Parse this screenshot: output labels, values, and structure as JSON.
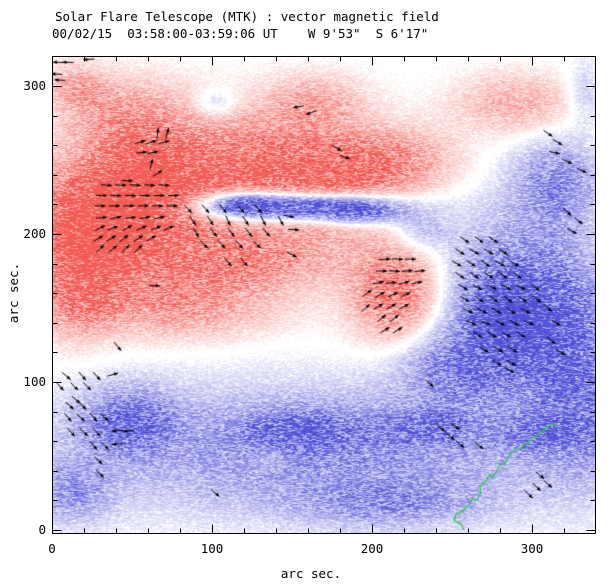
{
  "chart_data": {
    "type": "heatmap",
    "title": "Solar Flare Telescope (MTK) : vector magnetic field",
    "subtitle": "00/02/15  03:58:00-03:59:06 UT    W 9'53\"  S 6'17\"",
    "xlabel": "arc sec.",
    "ylabel": "arc sec.",
    "xlim": [
      0,
      339
    ],
    "ylim": [
      0,
      321
    ],
    "x_major_ticks": [
      0,
      100,
      200,
      300
    ],
    "y_major_ticks": [
      0,
      100,
      200,
      300
    ],
    "x_minor_ticks": [
      20,
      40,
      60,
      80,
      120,
      140,
      160,
      180,
      220,
      240,
      260,
      280,
      320
    ],
    "y_minor_ticks": [
      20,
      40,
      60,
      80,
      120,
      140,
      160,
      180,
      220,
      240,
      260,
      280,
      320
    ],
    "grid": false,
    "colors": {
      "positive": "#f35a54",
      "negative": "#5050d7",
      "contour": "#33c45e",
      "vectors": "#000000",
      "frame": "#000000",
      "background": "#ffffff"
    },
    "polarity_blobs": [
      [
        30,
        205,
        40,
        38,
        1.05
      ],
      [
        75,
        215,
        70,
        48,
        0.5
      ],
      [
        45,
        280,
        38,
        26,
        0.42
      ],
      [
        120,
        250,
        55,
        35,
        0.5
      ],
      [
        80,
        150,
        60,
        20,
        0.42
      ],
      [
        15,
        160,
        22,
        30,
        0.5
      ],
      [
        60,
        240,
        30,
        25,
        0.5
      ],
      [
        170,
        230,
        45,
        35,
        0.55
      ],
      [
        120,
        180,
        55,
        18,
        0.45
      ],
      [
        215,
        160,
        28,
        32,
        0.75
      ],
      [
        210,
        250,
        40,
        22,
        0.5
      ],
      [
        165,
        290,
        30,
        18,
        0.35
      ],
      [
        290,
        288,
        38,
        20,
        0.38
      ],
      [
        15,
        300,
        18,
        15,
        0.35
      ],
      [
        135,
        48,
        14,
        8,
        0.18
      ],
      [
        148,
        219,
        58,
        10,
        -1.5
      ],
      [
        118,
        221,
        22,
        8,
        -0.5
      ],
      [
        192,
        215,
        26,
        9,
        -0.6
      ],
      [
        292,
        150,
        48,
        55,
        -0.8
      ],
      [
        287,
        143,
        20,
        22,
        -0.5
      ],
      [
        315,
        235,
        28,
        30,
        -0.5
      ],
      [
        330,
        100,
        30,
        60,
        -0.5
      ],
      [
        333,
        295,
        12,
        20,
        -0.25
      ],
      [
        250,
        110,
        35,
        25,
        -0.4
      ],
      [
        230,
        202,
        18,
        13,
        -0.3
      ],
      [
        103,
        288,
        14,
        10,
        -0.3
      ],
      [
        165,
        55,
        165,
        42,
        -0.5
      ],
      [
        48,
        75,
        28,
        22,
        -0.55
      ],
      [
        155,
        68,
        35,
        14,
        -0.4
      ],
      [
        235,
        70,
        28,
        12,
        -0.35
      ],
      [
        305,
        65,
        25,
        12,
        -0.35
      ],
      [
        12,
        25,
        25,
        20,
        -0.4
      ],
      [
        210,
        18,
        60,
        16,
        -0.35
      ]
    ],
    "vector_rows": [
      {
        "y": 316,
        "a": 180,
        "xs": [
          4,
          10
        ]
      },
      {
        "y": 318,
        "a": 180,
        "xs": [
          23
        ]
      },
      {
        "y": 308,
        "a": 180,
        "xs": [
          3
        ]
      },
      {
        "y": 304,
        "a": 180,
        "xs": [
          5
        ]
      },
      {
        "y": 268,
        "a": 80,
        "xs": [
          66,
          72
        ]
      },
      {
        "y": 262,
        "a": 15,
        "xs": [
          55,
          62,
          70
        ]
      },
      {
        "y": 255,
        "a": 10,
        "xs": [
          56,
          63
        ]
      },
      {
        "y": 247,
        "a": 80,
        "xs": [
          62
        ]
      },
      {
        "y": 241,
        "a": 30,
        "xs": [
          66
        ]
      },
      {
        "y": 236,
        "a": 0,
        "xs": [
          47
        ]
      },
      {
        "y": 233,
        "a": 0,
        "xs": [
          34,
          43,
          52,
          61,
          70
        ]
      },
      {
        "y": 226,
        "a": 0,
        "xs": [
          31,
          40,
          49,
          58,
          67,
          76
        ]
      },
      {
        "y": 219,
        "a": 0,
        "xs": [
          30,
          39,
          48,
          57,
          66,
          75
        ]
      },
      {
        "y": 211,
        "a": 8,
        "xs": [
          31,
          40,
          49,
          58,
          67
        ]
      },
      {
        "y": 204,
        "a": 25,
        "xs": [
          30,
          38,
          47,
          56,
          65,
          73
        ]
      },
      {
        "y": 197,
        "a": 35,
        "xs": [
          29,
          37,
          45,
          54,
          62
        ]
      },
      {
        "y": 190,
        "a": 40,
        "xs": [
          30,
          38,
          46,
          54
        ]
      },
      {
        "y": 217,
        "a": -50,
        "xs": [
          85,
          96,
          107,
          118,
          129
        ]
      },
      {
        "y": 209,
        "a": -60,
        "xs": [
          88,
          99,
          110,
          121,
          132,
          143
        ]
      },
      {
        "y": 201,
        "a": -55,
        "xs": [
          90,
          101,
          112,
          123,
          134
        ]
      },
      {
        "y": 193,
        "a": -45,
        "xs": [
          95,
          106,
          117,
          128
        ]
      },
      {
        "y": 212,
        "a": -10,
        "xs": [
          148
        ]
      },
      {
        "y": 203,
        "a": 0,
        "xs": [
          151
        ]
      },
      {
        "y": 181,
        "a": -45,
        "xs": [
          110,
          120
        ]
      },
      {
        "y": 186,
        "a": -30,
        "xs": [
          150
        ]
      },
      {
        "y": 183,
        "a": 0,
        "xs": [
          208,
          216,
          224
        ]
      },
      {
        "y": 175,
        "a": 0,
        "xs": [
          206,
          214,
          222,
          230
        ]
      },
      {
        "y": 167,
        "a": 10,
        "xs": [
          204,
          212,
          220,
          228
        ]
      },
      {
        "y": 159,
        "a": 25,
        "xs": [
          205,
          213,
          221
        ]
      },
      {
        "y": 151,
        "a": 30,
        "xs": [
          204,
          212,
          220
        ]
      },
      {
        "y": 143,
        "a": 35,
        "xs": [
          206,
          214
        ]
      },
      {
        "y": 135,
        "a": 35,
        "xs": [
          208,
          216
        ]
      },
      {
        "y": 160,
        "a": 35,
        "xs": [
          197
        ]
      },
      {
        "y": 150,
        "a": 40,
        "xs": [
          196
        ]
      },
      {
        "y": 196,
        "a": -35,
        "xs": [
          258,
          267,
          276
        ]
      },
      {
        "y": 188,
        "a": -35,
        "xs": [
          255,
          264,
          273,
          282
        ]
      },
      {
        "y": 180,
        "a": -30,
        "xs": [
          253,
          262,
          271,
          280,
          289
        ]
      },
      {
        "y": 172,
        "a": -35,
        "xs": [
          255,
          264,
          273,
          282,
          291
        ]
      },
      {
        "y": 164,
        "a": -30,
        "xs": [
          257,
          266,
          275,
          284,
          293,
          302
        ]
      },
      {
        "y": 156,
        "a": -35,
        "xs": [
          258,
          267,
          276,
          285,
          294,
          303
        ]
      },
      {
        "y": 148,
        "a": -30,
        "xs": [
          260,
          269,
          278,
          287,
          296
        ]
      },
      {
        "y": 140,
        "a": -25,
        "xs": [
          262,
          271,
          280,
          289,
          298
        ]
      },
      {
        "y": 132,
        "a": -35,
        "xs": [
          266,
          275,
          284,
          293
        ]
      },
      {
        "y": 122,
        "a": -30,
        "xs": [
          270,
          279,
          288
        ]
      },
      {
        "y": 113,
        "a": -35,
        "xs": [
          278,
          287
        ]
      },
      {
        "y": 215,
        "a": -40,
        "xs": [
          322
        ]
      },
      {
        "y": 209,
        "a": -40,
        "xs": [
          329
        ]
      },
      {
        "y": 202,
        "a": -35,
        "xs": [
          325
        ]
      },
      {
        "y": 255,
        "a": -10,
        "xs": [
          314
        ]
      },
      {
        "y": 249,
        "a": -25,
        "xs": [
          322
        ]
      },
      {
        "y": 243,
        "a": -30,
        "xs": [
          331
        ]
      },
      {
        "y": 150,
        "a": -35,
        "xs": [
          310
        ]
      },
      {
        "y": 140,
        "a": -30,
        "xs": [
          315
        ]
      },
      {
        "y": 128,
        "a": -40,
        "xs": [
          312
        ]
      },
      {
        "y": 120,
        "a": -35,
        "xs": [
          318
        ]
      },
      {
        "y": 104,
        "a": -45,
        "xs": [
          9,
          19,
          28
        ]
      },
      {
        "y": 105,
        "a": 20,
        "xs": [
          38
        ]
      },
      {
        "y": 97,
        "a": -45,
        "xs": [
          5,
          14,
          22
        ]
      },
      {
        "y": 88,
        "a": -45,
        "xs": [
          15
        ]
      },
      {
        "y": 84,
        "a": -45,
        "xs": [
          11,
          19
        ]
      },
      {
        "y": 76,
        "a": -45,
        "xs": [
          10,
          18,
          26,
          33
        ]
      },
      {
        "y": 66,
        "a": -45,
        "xs": [
          12,
          20,
          28
        ]
      },
      {
        "y": 67,
        "a": 180,
        "xs": [
          41,
          48
        ]
      },
      {
        "y": 57,
        "a": -45,
        "xs": [
          26,
          33
        ]
      },
      {
        "y": 58,
        "a": 180,
        "xs": [
          41
        ]
      },
      {
        "y": 47,
        "a": -45,
        "xs": [
          29
        ]
      },
      {
        "y": 38,
        "a": -45,
        "xs": [
          30
        ]
      }
    ],
    "vector_singles": [
      [
        64,
        165,
        0
      ],
      [
        41,
        124,
        -50
      ],
      [
        102,
        25,
        -40
      ],
      [
        236,
        99,
        -40
      ],
      [
        286,
        108,
        -30
      ],
      [
        249,
        63,
        -40
      ],
      [
        255,
        58,
        -40
      ],
      [
        243,
        69,
        -40
      ],
      [
        252,
        70,
        -35
      ],
      [
        267,
        57,
        -40
      ],
      [
        305,
        37,
        -40
      ],
      [
        310,
        31,
        -40
      ],
      [
        303,
        29,
        -45
      ],
      [
        298,
        24,
        -45
      ],
      [
        154,
        286,
        190
      ],
      [
        162,
        282,
        200
      ],
      [
        178,
        258,
        -30
      ],
      [
        183,
        252,
        -20
      ],
      [
        310,
        268,
        -35
      ],
      [
        316,
        262,
        -30
      ]
    ],
    "contour_points": [
      [
        257.5,
        0
      ],
      [
        255.6,
        4.1
      ],
      [
        251.3,
        6.1
      ],
      [
        252.5,
        10.8
      ],
      [
        257.5,
        13.5
      ],
      [
        260.6,
        16.9
      ],
      [
        262.5,
        20.9
      ],
      [
        265.6,
        20.3
      ],
      [
        268.1,
        25.7
      ],
      [
        267.5,
        29.7
      ],
      [
        271.3,
        33.1
      ],
      [
        273.1,
        37.2
      ],
      [
        275.6,
        35.8
      ],
      [
        278.1,
        40.5
      ],
      [
        280.0,
        44.6
      ],
      [
        283.1,
        44.6
      ],
      [
        285.0,
        48.6
      ],
      [
        286.9,
        52.7
      ],
      [
        290.0,
        54.1
      ],
      [
        292.5,
        54.7
      ],
      [
        295.0,
        58.1
      ],
      [
        297.5,
        58.8
      ],
      [
        300.0,
        62.2
      ],
      [
        302.5,
        63.5
      ],
      [
        305.6,
        66.2
      ],
      [
        308.8,
        68.2
      ],
      [
        310.6,
        70.3
      ],
      [
        313.1,
        71.6
      ],
      [
        315.6,
        70.3
      ]
    ]
  }
}
